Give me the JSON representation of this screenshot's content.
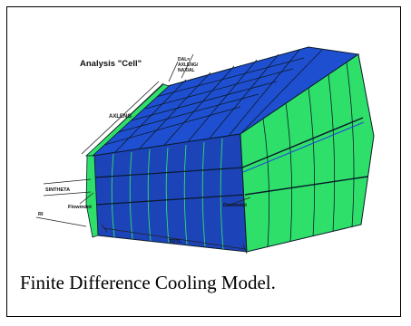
{
  "diagram": {
    "analysis_label": "Analysis \"Cell\"",
    "dal_lines": [
      "DAL=",
      "AXLENG/",
      "NAXIAL"
    ],
    "axleng_label": "AXLENG",
    "sintheta_label": "SINTHETA",
    "flowmdot_left_label": "Flowmdot",
    "flowmdot_right_label": "Flowmdot",
    "ri_label": "RI",
    "totl_label": "TOTL",
    "colors": {
      "blue": "#1f4fd1",
      "blue_dark": "#1c43b8",
      "green": "#2ee06a",
      "green_dark": "#22c456",
      "line": "#0a1a2a"
    }
  },
  "caption": "Finite Difference Cooling Model."
}
